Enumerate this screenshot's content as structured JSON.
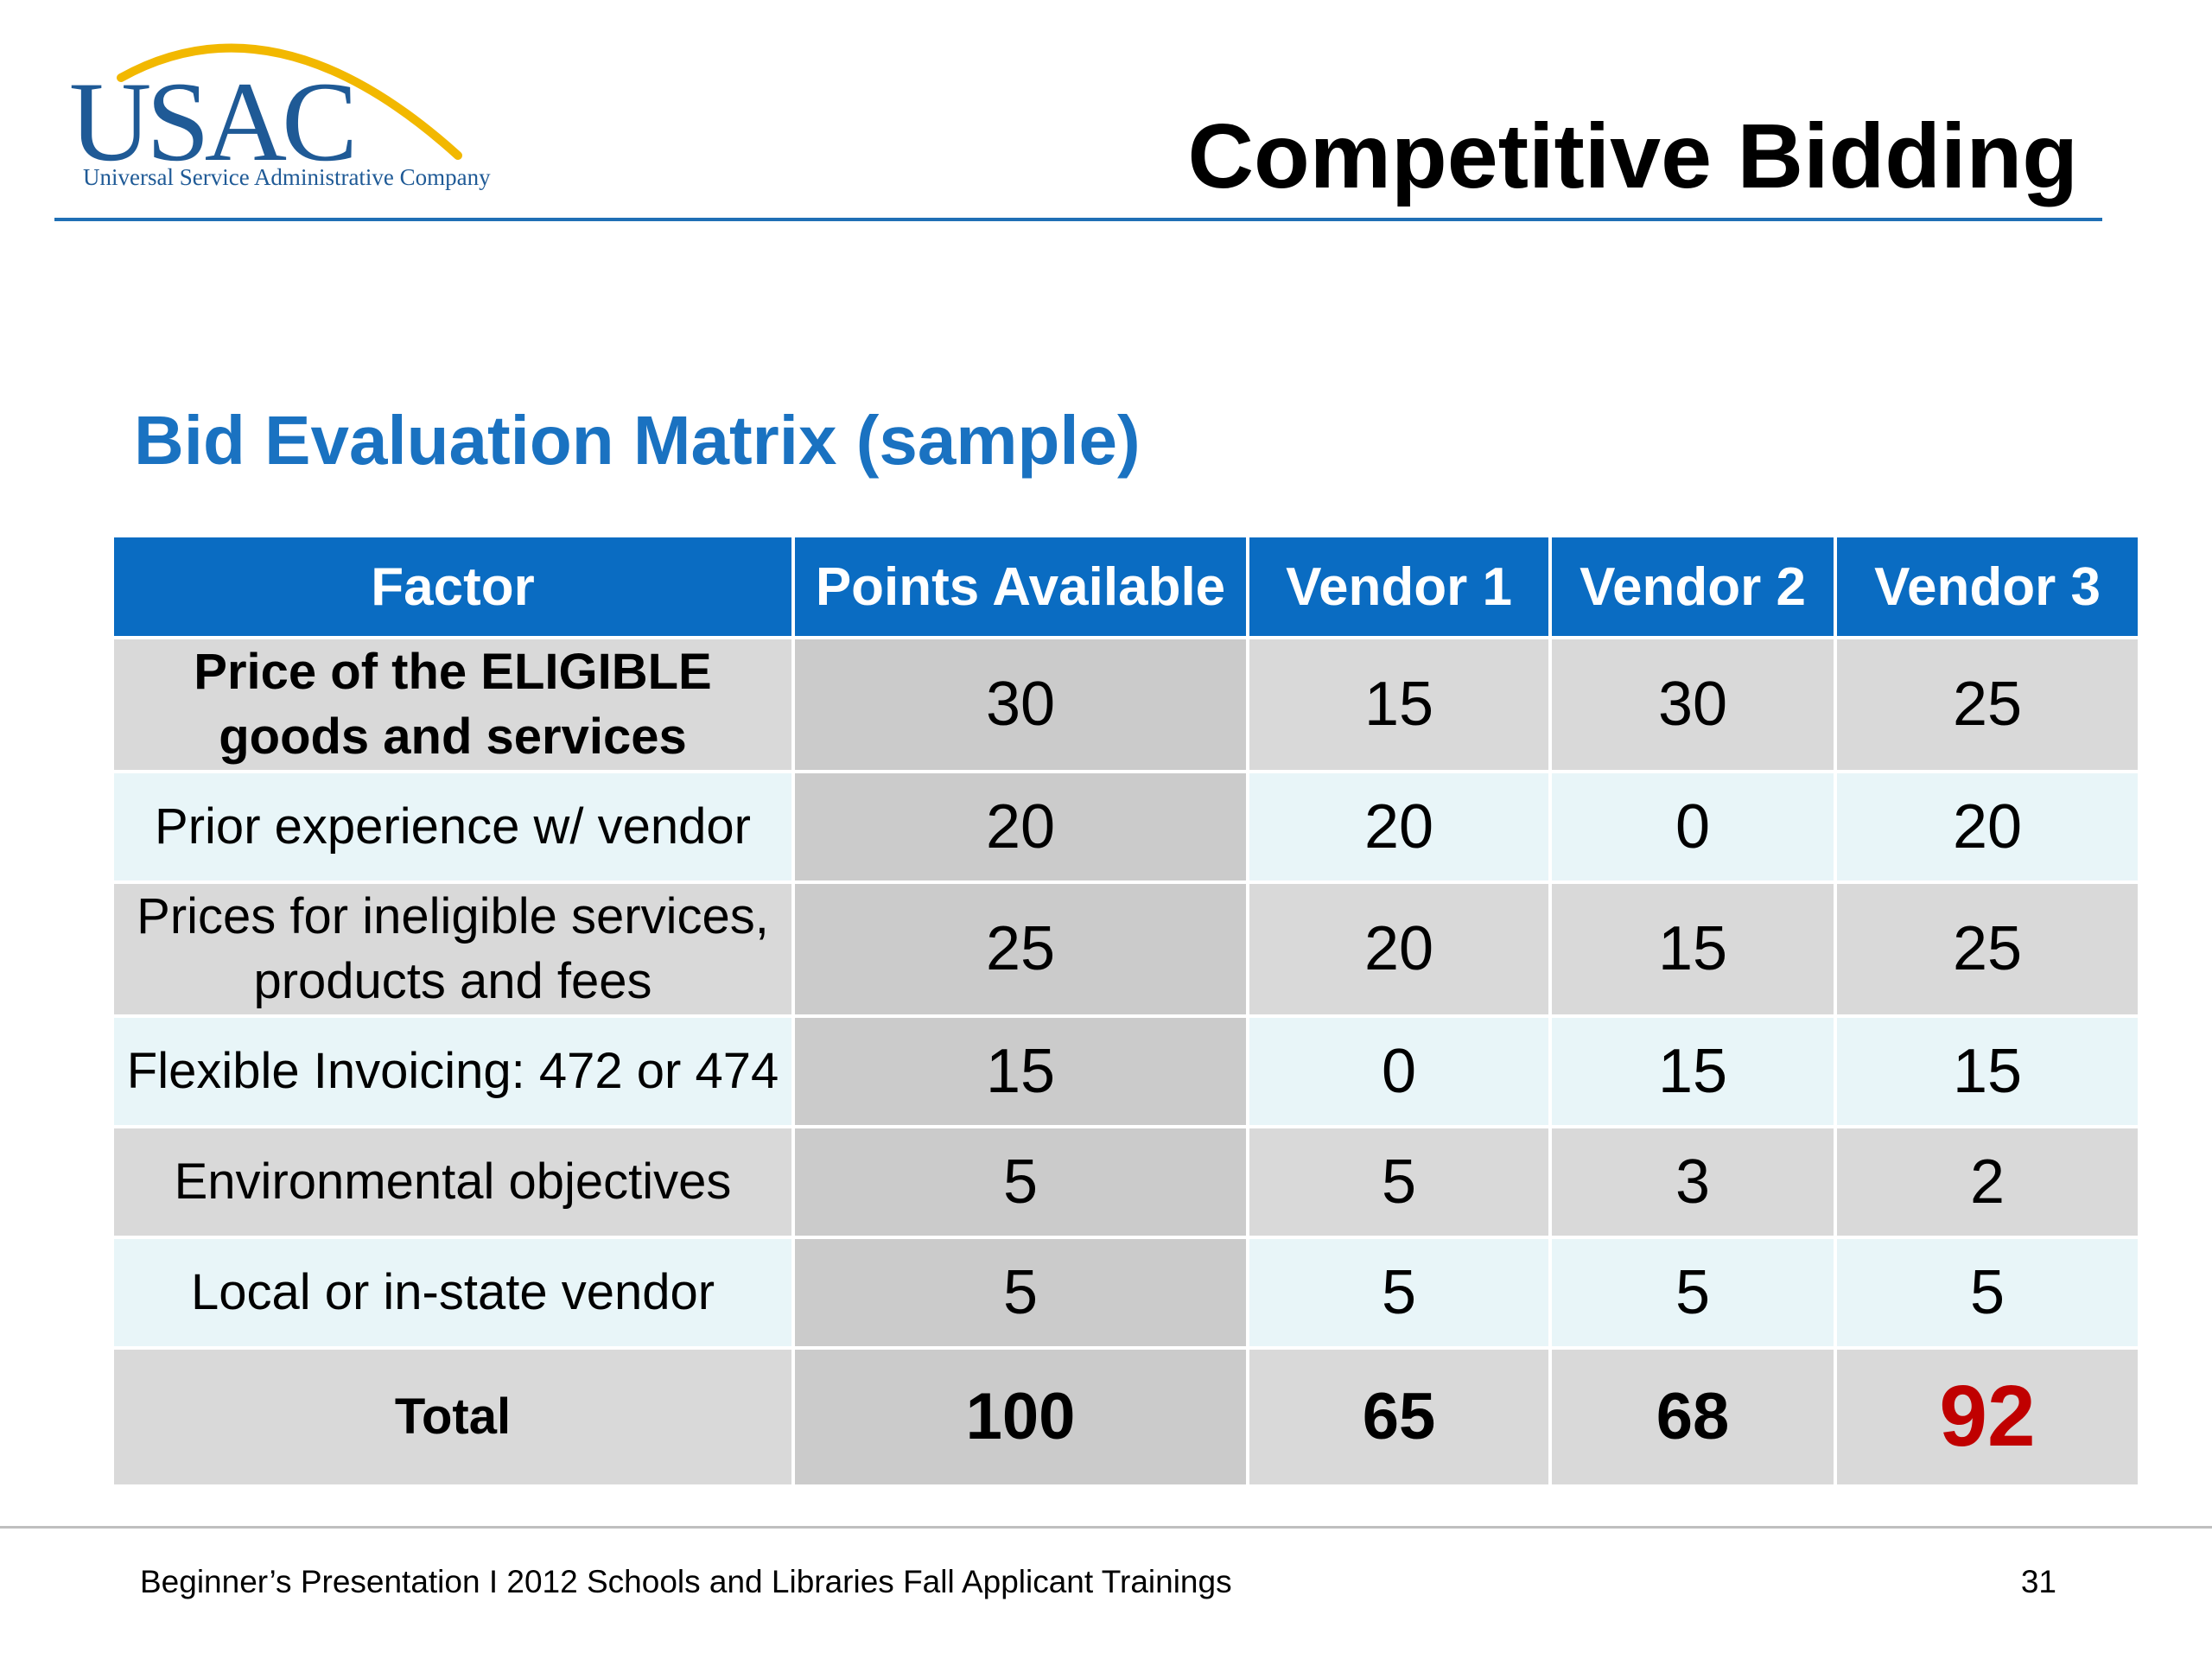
{
  "logo": {
    "name": "USAC",
    "subtitle": "Universal Service Administrative Company",
    "colors": {
      "text": "#1f5a96",
      "arc": "#f2b800"
    }
  },
  "header": {
    "title": "Competitive Bidding"
  },
  "section": {
    "title": "Bid Evaluation Matrix (sample)"
  },
  "table": {
    "headers": [
      "Factor",
      "Points Available",
      "Vendor 1",
      "Vendor 2",
      "Vendor 3"
    ],
    "rows": [
      {
        "factor": "Price of the ELIGIBLE goods and services",
        "points": "30",
        "v1": "15",
        "v2": "30",
        "v3": "25"
      },
      {
        "factor": "Prior experience w/ vendor",
        "points": "20",
        "v1": "20",
        "v2": "0",
        "v3": "20"
      },
      {
        "factor": "Prices for ineligible services, products and fees",
        "points": "25",
        "v1": "20",
        "v2": "15",
        "v3": "25"
      },
      {
        "factor": "Flexible Invoicing: 472 or 474",
        "points": "15",
        "v1": "0",
        "v2": "15",
        "v3": "15"
      },
      {
        "factor": "Environmental objectives",
        "points": "5",
        "v1": "5",
        "v2": "3",
        "v3": "2"
      },
      {
        "factor": "Local or in-state vendor",
        "points": "5",
        "v1": "5",
        "v2": "5",
        "v3": "5"
      }
    ],
    "total": {
      "factor": "Total",
      "points": "100",
      "v1": "65",
      "v2": "68",
      "v3": "92"
    },
    "colors": {
      "header_bg": "#0a6cc2",
      "highlight": "#c00000"
    }
  },
  "footer": {
    "text": "Beginner’s Presentation  I  2012 Schools and Libraries  Fall Applicant Trainings",
    "page_number": "31"
  }
}
